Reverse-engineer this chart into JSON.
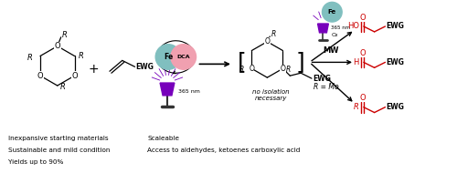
{
  "bg_color": "#ffffff",
  "bottom_text_left": [
    "Inexpansive starting materials",
    "Sustainable and mild condition",
    "Yields up to 90%"
  ],
  "bottom_text_right": [
    "Scaleable",
    "Access to aldehydes, ketoenes carboxylic acid"
  ],
  "text_fontsize": 6.0,
  "red_color": "#cc0000",
  "black_color": "#000000",
  "fe_color": "#80bfbf",
  "dca_color": "#f0a0b0",
  "purple_color": "#7700bb",
  "dark_color": "#333333"
}
